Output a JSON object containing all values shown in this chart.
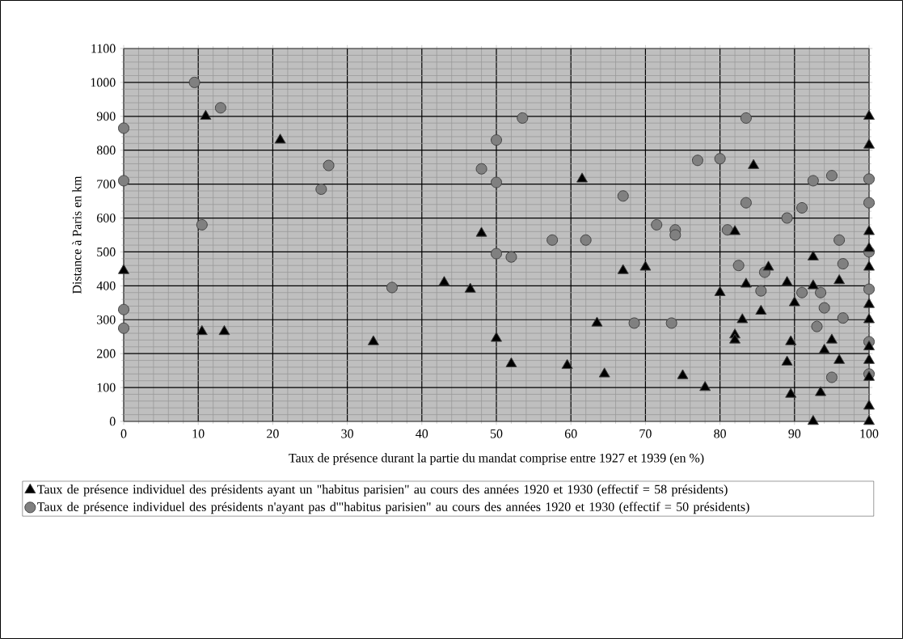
{
  "chart_data": {
    "type": "scatter",
    "xlabel": "Taux de présence durant la partie du mandat comprise entre 1927 et 1939 (en %)",
    "ylabel": "Distance à Paris en km",
    "xlim": [
      0,
      100
    ],
    "ylim": [
      0,
      1100
    ],
    "xticks": [
      0,
      10,
      20,
      30,
      40,
      50,
      60,
      70,
      80,
      90,
      100
    ],
    "yticks": [
      0,
      100,
      200,
      300,
      400,
      500,
      600,
      700,
      800,
      900,
      1000,
      1100
    ],
    "grid": true,
    "legend": "bottom",
    "series": [
      {
        "name": "Taux de présence individuel des présidents ayant un \"habitus parisien\" au cours des années 1920 et 1930 (effectif = 58 présidents)",
        "color": "#000000",
        "marker": "triangle",
        "x": [
          0,
          11,
          21,
          10.5,
          13.5,
          33.5,
          43,
          46.5,
          48,
          50,
          52,
          59.5,
          61.5,
          63.5,
          64.5,
          67,
          70,
          75,
          78,
          80,
          82,
          82,
          82,
          83,
          83.5,
          84.5,
          85.5,
          86.5,
          89,
          89,
          89.5,
          89.5,
          90,
          92.5,
          92.5,
          92.5,
          93.5,
          94,
          95,
          96,
          96,
          100,
          100,
          100,
          100,
          100,
          100,
          100,
          100,
          100,
          100,
          100,
          100
        ],
        "values": [
          445,
          900,
          830,
          265,
          265,
          235,
          410,
          390,
          555,
          245,
          170,
          165,
          715,
          290,
          140,
          445,
          455,
          135,
          100,
          380,
          560,
          255,
          240,
          300,
          405,
          755,
          325,
          455,
          410,
          175,
          235,
          80,
          350,
          485,
          400,
          0,
          85,
          210,
          240,
          415,
          180,
          900,
          815,
          560,
          510,
          455,
          345,
          300,
          220,
          180,
          130,
          45,
          0
        ]
      },
      {
        "name": "Taux de présence individuel des présidents n'ayant pas d'\"habitus parisien\" au cours des années 1920 et 1930 (effectif = 50 présidents)",
        "color": "#808080",
        "marker": "circle",
        "x": [
          0,
          0,
          0,
          0,
          9.5,
          13,
          10.5,
          26.5,
          27.5,
          36,
          48,
          50,
          50,
          50,
          52,
          53.5,
          57.5,
          62,
          67,
          68.5,
          71.5,
          73.5,
          74,
          74,
          77,
          80,
          81,
          82.5,
          83.5,
          83.5,
          85.5,
          86,
          89,
          91,
          91,
          92.5,
          93.5,
          93,
          94,
          95,
          95,
          96,
          96.5,
          96.5,
          100,
          100,
          100,
          100,
          100,
          100
        ],
        "values": [
          865,
          710,
          330,
          275,
          1000,
          925,
          580,
          685,
          755,
          395,
          745,
          830,
          705,
          495,
          485,
          895,
          535,
          535,
          665,
          290,
          580,
          290,
          565,
          550,
          770,
          775,
          565,
          460,
          895,
          645,
          385,
          440,
          600,
          380,
          630,
          710,
          380,
          280,
          335,
          725,
          130,
          535,
          465,
          305,
          715,
          645,
          500,
          390,
          235,
          140
        ]
      }
    ]
  }
}
